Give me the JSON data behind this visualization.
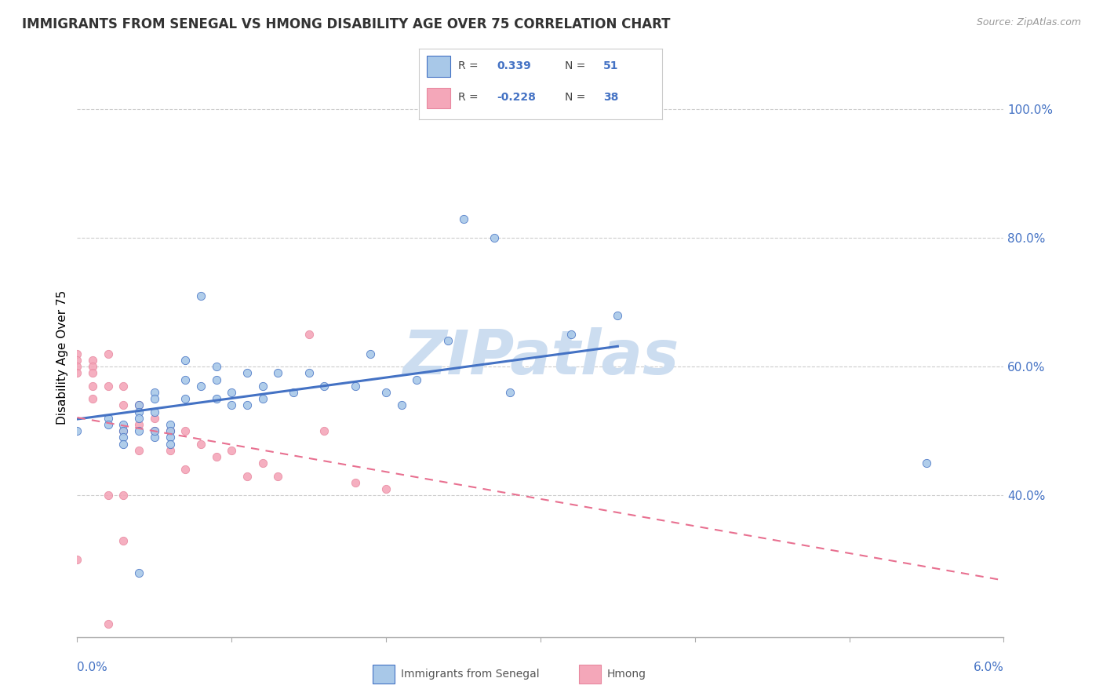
{
  "title": "IMMIGRANTS FROM SENEGAL VS HMONG DISABILITY AGE OVER 75 CORRELATION CHART",
  "source": "Source: ZipAtlas.com",
  "ylabel": "Disability Age Over 75",
  "xlim": [
    0.0,
    0.06
  ],
  "ylim": [
    0.18,
    1.05
  ],
  "senegal_color": "#a8c8e8",
  "hmong_color": "#f4a7b9",
  "line_senegal_color": "#4472C4",
  "line_hmong_color": "#e87090",
  "watermark": "ZIPatlas",
  "watermark_color": "#ccddf0",
  "senegal_x": [
    0.0,
    0.002,
    0.002,
    0.003,
    0.003,
    0.003,
    0.003,
    0.004,
    0.004,
    0.004,
    0.004,
    0.005,
    0.005,
    0.005,
    0.005,
    0.005,
    0.006,
    0.006,
    0.006,
    0.006,
    0.007,
    0.007,
    0.007,
    0.008,
    0.008,
    0.009,
    0.009,
    0.009,
    0.01,
    0.01,
    0.011,
    0.011,
    0.012,
    0.012,
    0.013,
    0.014,
    0.015,
    0.016,
    0.018,
    0.019,
    0.02,
    0.021,
    0.022,
    0.024,
    0.025,
    0.027,
    0.028,
    0.032,
    0.035,
    0.055,
    0.004
  ],
  "senegal_y": [
    0.5,
    0.52,
    0.51,
    0.51,
    0.5,
    0.49,
    0.48,
    0.54,
    0.53,
    0.52,
    0.5,
    0.49,
    0.56,
    0.55,
    0.53,
    0.5,
    0.51,
    0.5,
    0.49,
    0.48,
    0.61,
    0.58,
    0.55,
    0.71,
    0.57,
    0.6,
    0.58,
    0.55,
    0.56,
    0.54,
    0.59,
    0.54,
    0.57,
    0.55,
    0.59,
    0.56,
    0.59,
    0.57,
    0.57,
    0.62,
    0.56,
    0.54,
    0.58,
    0.64,
    0.83,
    0.8,
    0.56,
    0.65,
    0.68,
    0.45,
    0.28
  ],
  "hmong_x": [
    0.0,
    0.0,
    0.0,
    0.0,
    0.0,
    0.001,
    0.001,
    0.001,
    0.001,
    0.001,
    0.002,
    0.002,
    0.002,
    0.003,
    0.003,
    0.003,
    0.003,
    0.004,
    0.004,
    0.004,
    0.005,
    0.005,
    0.006,
    0.006,
    0.007,
    0.007,
    0.008,
    0.009,
    0.01,
    0.011,
    0.012,
    0.013,
    0.015,
    0.016,
    0.018,
    0.02,
    0.003,
    0.002
  ],
  "hmong_y": [
    0.62,
    0.61,
    0.6,
    0.59,
    0.3,
    0.61,
    0.6,
    0.59,
    0.57,
    0.55,
    0.62,
    0.57,
    0.4,
    0.57,
    0.54,
    0.5,
    0.4,
    0.54,
    0.51,
    0.47,
    0.52,
    0.5,
    0.5,
    0.47,
    0.5,
    0.44,
    0.48,
    0.46,
    0.47,
    0.43,
    0.45,
    0.43,
    0.65,
    0.5,
    0.42,
    0.41,
    0.33,
    0.2
  ]
}
